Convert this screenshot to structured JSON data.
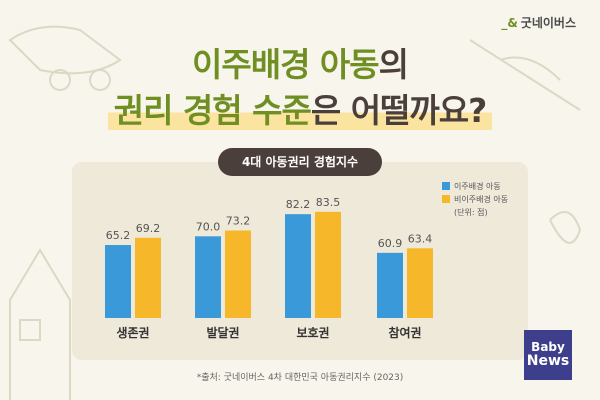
{
  "logo": {
    "text": "굿네이버스"
  },
  "title": {
    "line1_green": "이주배경 아동",
    "line1_dark": "의",
    "line2_green": "권리 경험 수준",
    "line2_dark": "은 어떨까요?"
  },
  "badge": {
    "text": "BabyNews",
    "line1": "Baby",
    "line2": "News"
  },
  "source": "*출처: 굿네이버스 4차 대한민국 아동권리지수 (2023)",
  "colors": {
    "accent_green": "#6f8f22",
    "blue": "#3a9ad9",
    "yellow": "#f6b72b",
    "dark": "#4a3f3b"
  },
  "chart_data": {
    "type": "bar",
    "title": "4대 아동권리 경험지수",
    "categories": [
      "생존권",
      "발달권",
      "보호권",
      "참여권"
    ],
    "series": [
      {
        "name": "이주배경 아동",
        "color": "#3a9ad9",
        "values": [
          65.2,
          70.0,
          82.2,
          60.9
        ]
      },
      {
        "name": "비이주배경 아동",
        "color": "#f6b72b",
        "values": [
          69.2,
          73.2,
          83.5,
          63.4
        ]
      }
    ],
    "unit_note": "(단위: 점)",
    "legend": "top-right",
    "grid": false,
    "ylim": [
      25,
      90
    ]
  }
}
